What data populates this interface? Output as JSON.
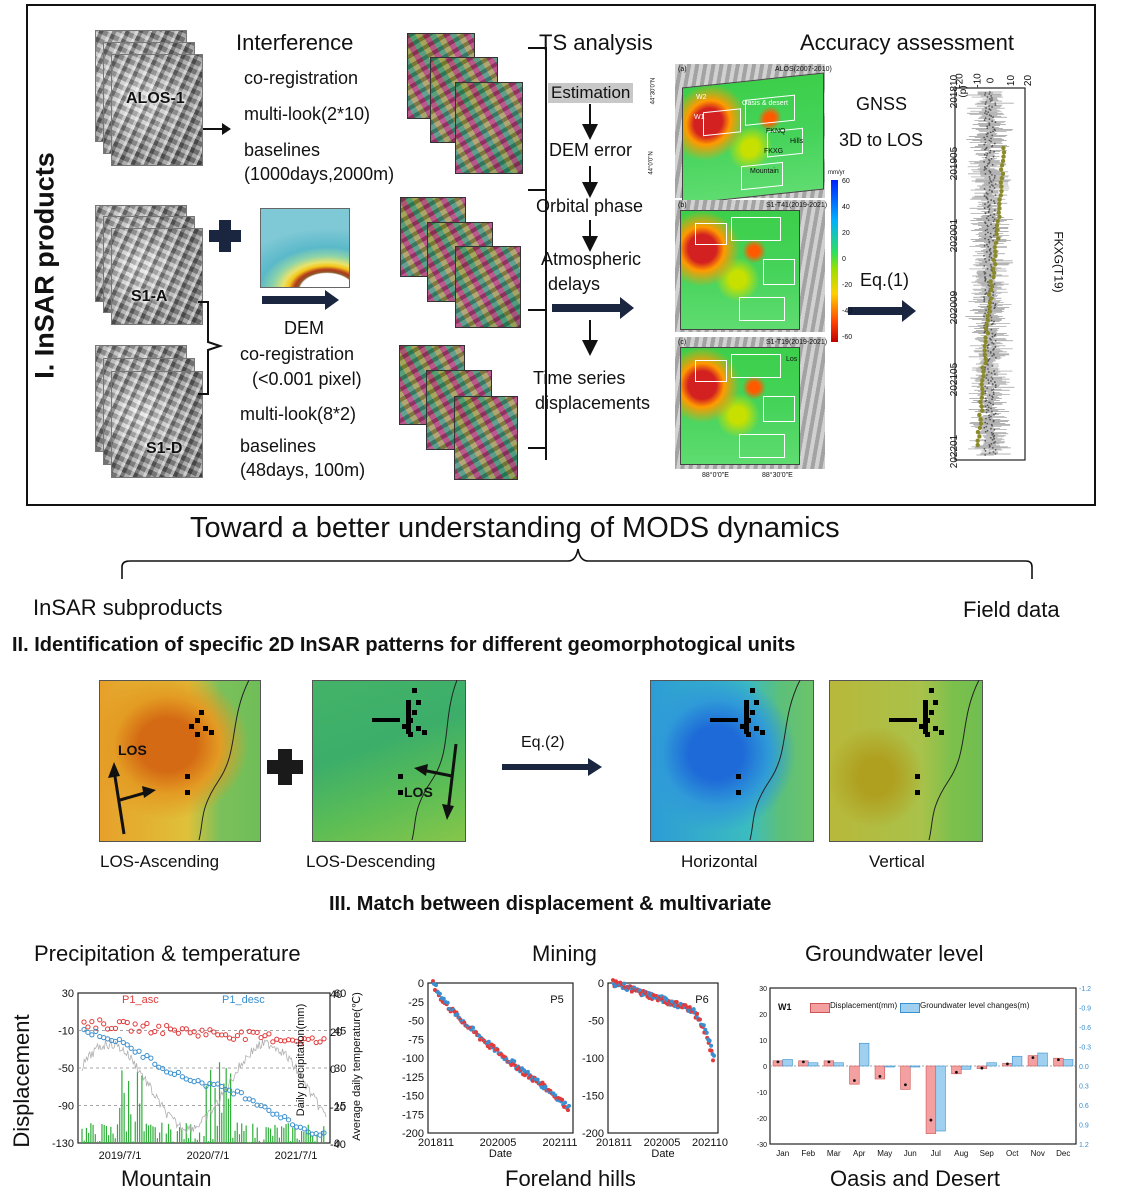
{
  "section1": {
    "vertical_title": "I. InSAR products",
    "alos_label": "ALOS-1",
    "s1a_label": "S1-A",
    "s1d_label": "S1-D",
    "interference_title": "Interference",
    "alos_steps": [
      "co-registration",
      "multi-look(2*10)",
      "baselines",
      "(1000days,2000m)"
    ],
    "dem_title": "DEM",
    "s1_steps": [
      "co-registration",
      "(<0.001 pixel)",
      "multi-look(8*2)",
      "baselines",
      "(48days, 100m)"
    ],
    "ts_title": "TS analysis",
    "ts_steps": [
      "Estimation",
      "DEM error",
      "Orbital phase",
      "Atmospheric",
      "delays",
      "Time series",
      "displacements"
    ],
    "accuracy_title": "Accuracy assessment",
    "gnss_label": "GNSS",
    "conv_label": "3D to LOS",
    "eq1_label": "Eq.(1)",
    "map_panels": [
      {
        "tag": "(a)",
        "subtitle": "ALOS(2007-2010)"
      },
      {
        "tag": "(b)",
        "subtitle": "S1-T41(2019-2021)"
      },
      {
        "tag": "(c)",
        "subtitle": "S1-T19(2019-2021)"
      }
    ],
    "map_region_labels": [
      "Oasis & desert",
      "FKNQ",
      "Hills",
      "FKXG",
      "Mountain",
      "W2",
      "W1",
      "Los"
    ],
    "lat_labels": [
      "44°30'0\"N",
      "44°0'0\"N"
    ],
    "lon_labels": [
      "88°0'0\"E",
      "88°30'0\"E"
    ],
    "colorbar_unit": "mm/yr",
    "colorbar_ticks": [
      "60",
      "40",
      "20",
      "0",
      "-20",
      "-40",
      "-60"
    ],
    "gnss_plot": {
      "tag": "(d)",
      "station": "FKXG(T19)",
      "x_ticks": [
        "-20",
        "-10",
        "0",
        "10",
        "20"
      ],
      "time_ticks": [
        "201810",
        "201905",
        "202001",
        "202009",
        "202105",
        "202201"
      ]
    }
  },
  "middle": {
    "headline": "Toward a better understanding of MODS dynamics",
    "left_label": "InSAR subproducts",
    "right_label": "Field data"
  },
  "section2": {
    "title": "II. Identification of specific 2D InSAR patterns for different geomorphotogical units",
    "eq2_label": "Eq.(2)",
    "los_label": "LOS",
    "panel_labels": [
      "LOS-Ascending",
      "LOS-Descending",
      "Horizontal",
      "Vertical"
    ]
  },
  "section3": {
    "title": "III. Match between displacement & multivariate",
    "y_label": "Displacement",
    "precip": {
      "title": "Precipitation & temperature",
      "bottom_label": "Mountain",
      "legend": [
        "P1_asc",
        "P1_desc"
      ],
      "left_ticks": [
        "30",
        "-10",
        "-50",
        "-90",
        "-130"
      ],
      "mid_ticks": [
        "60",
        "45",
        "30",
        "15",
        "0"
      ],
      "right_ticks": [
        "40",
        "20",
        "0",
        "-20",
        "-40"
      ],
      "mid_axis_label": "Daily precipitation(mm)",
      "right_axis_label": "Average daily temperature(℃)",
      "x_ticks": [
        "2019/7/1",
        "2020/7/1",
        "2021/7/1"
      ]
    },
    "mining": {
      "title": "Mining",
      "bottom_label": "Foreland hills",
      "p5": {
        "name": "P5",
        "x_ticks": [
          "201811",
          "202005",
          "202111"
        ],
        "y_ticks": [
          "0",
          "-25",
          "-50",
          "-75",
          "-100",
          "-125",
          "-150",
          "-175",
          "-200"
        ],
        "xlabel": "Date"
      },
      "p6": {
        "name": "P6",
        "x_ticks": [
          "201811",
          "202005",
          "202110"
        ],
        "y_ticks": [
          "0",
          "-50",
          "-100",
          "-150",
          "-200"
        ],
        "xlabel": "Date"
      }
    },
    "groundwater": {
      "title": "Groundwater level",
      "bottom_label": "Oasis and Desert",
      "well": "W1",
      "legend": [
        "Displacement(mm)",
        "Groundwater level changes(m)"
      ],
      "left_ticks": [
        "30",
        "20",
        "10",
        "0",
        "-10",
        "-20",
        "-30"
      ],
      "right_ticks": [
        "-1.2",
        "-0.9",
        "-0.6",
        "-0.3",
        "0.0",
        "0.3",
        "0.6",
        "0.9",
        "1.2"
      ],
      "months": [
        "Jan",
        "Feb",
        "Mar",
        "Apr",
        "May",
        "Jun",
        "Jul",
        "Aug",
        "Sep",
        "Oct",
        "Nov",
        "Dec"
      ]
    }
  },
  "colors": {
    "asc": "#e23a3a",
    "desc": "#3a8fd0",
    "precip_bar": "#2fae3a",
    "temp_line": "#b0b0b0",
    "disp_bar": "#f4a0a0",
    "gw_bar": "#9fd0ef",
    "gnss_dot": "#8a8a2a"
  },
  "chart_data": [
    {
      "type": "line",
      "title": "Mining",
      "series": [
        {
          "name": "P5",
          "x": [
            "201811",
            "202005",
            "202111"
          ],
          "y": [
            0,
            -110,
            -165
          ]
        },
        {
          "name": "P6",
          "x": [
            "201811",
            "202005",
            "202110"
          ],
          "y": [
            0,
            -40,
            -100
          ]
        }
      ],
      "ylim": [
        -200,
        0
      ]
    },
    {
      "type": "bar",
      "title": "Groundwater level",
      "categories": [
        "Jan",
        "Feb",
        "Mar",
        "Apr",
        "May",
        "Jun",
        "Jul",
        "Aug",
        "Sep",
        "Oct",
        "Nov",
        "Dec"
      ],
      "series": [
        {
          "name": "Displacement(mm)",
          "values": [
            2,
            2,
            2,
            -7,
            -5,
            -9,
            -26,
            -3,
            -1,
            1,
            4,
            3
          ]
        },
        {
          "name": "Groundwater level changes(m)",
          "values": [
            -0.1,
            -0.05,
            -0.05,
            -0.35,
            0.0,
            0.0,
            1.0,
            0.05,
            -0.05,
            -0.15,
            -0.2,
            -0.1
          ]
        }
      ],
      "ylim": [
        -30,
        30
      ]
    },
    {
      "type": "scatter",
      "title": "Precipitation & temperature",
      "series": [
        {
          "name": "P1_asc",
          "x": [
            "2019/7/1",
            "2020/7/1",
            "2021/7/1"
          ],
          "y": [
            0,
            -15,
            -20
          ]
        },
        {
          "name": "P1_desc",
          "x": [
            "2019/7/1",
            "2020/7/1",
            "2021/7/1"
          ],
          "y": [
            -10,
            -55,
            -120
          ]
        }
      ],
      "ylim": [
        -130,
        30
      ]
    }
  ]
}
